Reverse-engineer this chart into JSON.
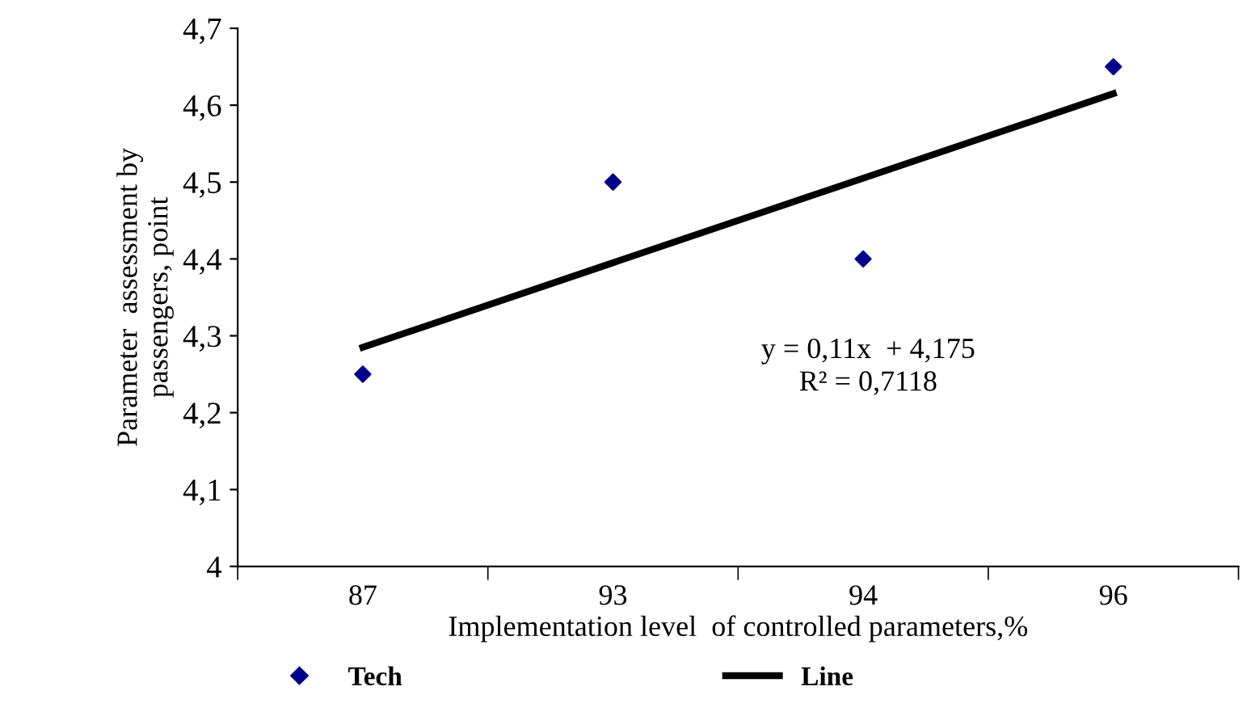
{
  "chart_data": {
    "type": "scatter",
    "xlabel": "Implementation level  of controlled parameters,%",
    "ylabel": "Parameter  assessment by\npassengers, point",
    "categories": [
      "87",
      "93",
      "94",
      "96"
    ],
    "series": [
      {
        "name": "Tech",
        "color": "#00008b",
        "marker": "diamond",
        "values": [
          4.25,
          4.5,
          4.4,
          4.65
        ]
      },
      {
        "name": "Line",
        "type": "line",
        "color": "#000000",
        "marker": "none",
        "line_style": "solid",
        "x": [
          "87",
          "96"
        ],
        "values": [
          4.285,
          4.615
        ]
      }
    ],
    "ylim": [
      4,
      4.7
    ],
    "yticks": [
      4,
      {
        "value": 4.1,
        "label": "4,1"
      },
      {
        "value": 4.2,
        "label": "4,2"
      },
      {
        "value": 4.3,
        "label": "4,3"
      },
      {
        "value": 4.4,
        "label": "4,4"
      },
      {
        "value": 4.5,
        "label": "4,5"
      },
      {
        "value": 4.6,
        "label": "4,6"
      },
      {
        "value": 4.7,
        "label": "4,7"
      }
    ],
    "annotations": [
      "y = 0,11x  + 4,175\nR² = 0,7118"
    ],
    "grid": false,
    "legend": "bottom"
  }
}
